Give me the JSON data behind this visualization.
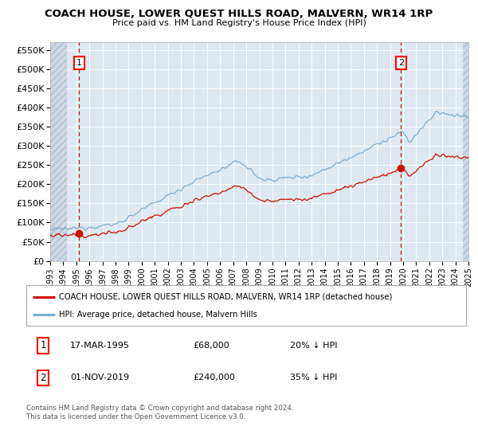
{
  "title": "COACH HOUSE, LOWER QUEST HILLS ROAD, MALVERN, WR14 1RP",
  "subtitle": "Price paid vs. HM Land Registry's House Price Index (HPI)",
  "legend_line1": "COACH HOUSE, LOWER QUEST HILLS ROAD, MALVERN, WR14 1RP (detached house)",
  "legend_line2": "HPI: Average price, detached house, Malvern Hills",
  "annotation1_date": "17-MAR-1995",
  "annotation1_price": "£68,000",
  "annotation1_hpi": "20% ↓ HPI",
  "annotation2_date": "01-NOV-2019",
  "annotation2_price": "£240,000",
  "annotation2_hpi": "35% ↓ HPI",
  "footer": "Contains HM Land Registry data © Crown copyright and database right 2024.\nThis data is licensed under the Open Government Licence v3.0.",
  "hpi_color": "#7aaed4",
  "price_color": "#cc1100",
  "marker_color": "#cc1100",
  "vline_color": "#cc1100",
  "bg_color": "#dde8f0",
  "grid_color": "#ffffff",
  "ylim": [
    0,
    570000
  ],
  "yticks": [
    0,
    50000,
    100000,
    150000,
    200000,
    250000,
    300000,
    350000,
    400000,
    450000,
    500000,
    550000
  ],
  "sale1_year": 1995.21,
  "sale1_price": 68000,
  "sale2_year": 2019.84,
  "sale2_price": 240000,
  "start_year": 1993,
  "end_year": 2025
}
